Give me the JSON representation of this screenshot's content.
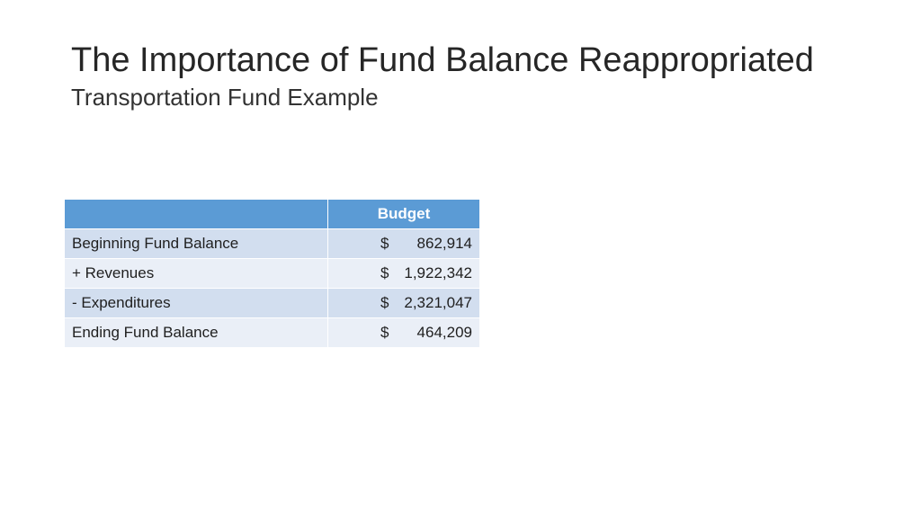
{
  "slide": {
    "title": "The Importance of Fund Balance Reappropriated",
    "subtitle": "Transportation Fund Example"
  },
  "table": {
    "header": {
      "label": "",
      "budget": "Budget"
    },
    "rows": [
      {
        "label": "Beginning Fund Balance",
        "currency": "$",
        "amount": "862,914"
      },
      {
        "label": "+ Revenues",
        "currency": "$",
        "amount": "1,922,342"
      },
      {
        "label": "- Expenditures",
        "currency": "$",
        "amount": "2,321,047"
      },
      {
        "label": "Ending Fund Balance",
        "currency": "$",
        "amount": "464,209"
      }
    ],
    "colors": {
      "header_bg": "#5b9bd5",
      "row_odd_bg": "#d2deef",
      "row_even_bg": "#eaeff7"
    }
  }
}
